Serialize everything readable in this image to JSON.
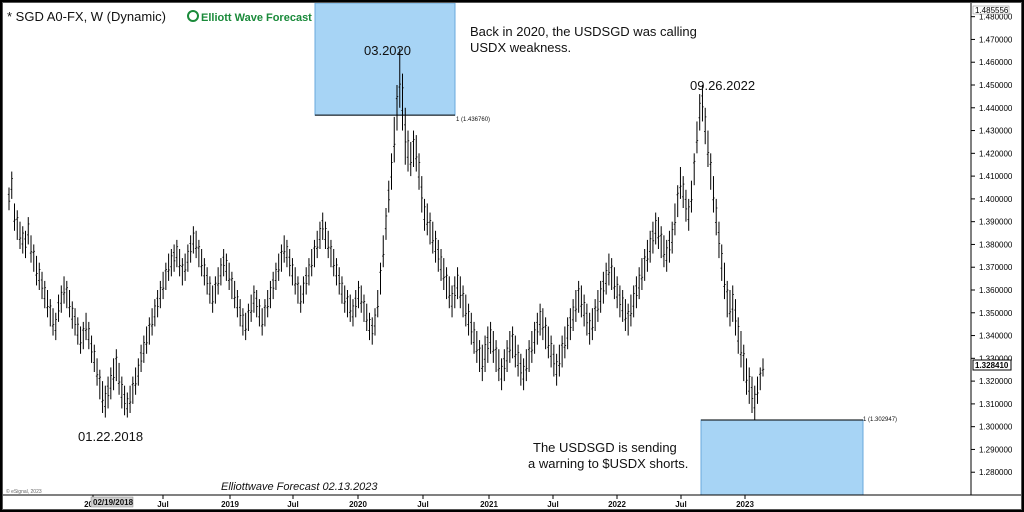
{
  "header": {
    "title": "* SGD A0-FX, W (Dynamic)",
    "brand": "Elliott Wave Forecast"
  },
  "annotations": {
    "peak_2020": "03.2020",
    "peak_2022": "09.26.2022",
    "low_2018": "01.22.2018",
    "note_top_line1": "Back in 2020, the USDSGD was calling",
    "note_top_line2": "USDX weakness.",
    "note_bottom_line1": "The USDSGD is sending",
    "note_bottom_line2": "a warning to $USDX shorts.",
    "box_top_label": "1 (1.436760)",
    "box_bottom_label": "1 (1.302947)",
    "footer": "Elliottwave Forecast  02.13.2023",
    "copyright": "© eSignal, 2023",
    "current_price": "1.328410",
    "top_price": "1.485556",
    "cursor_date": "02/19/2018"
  },
  "colors": {
    "bars": "#000000",
    "box_fill": "#a7d4f5",
    "box_stroke": "#6aa9dc",
    "brand_green": "#1a8a3a",
    "price_box": "#ffffff"
  },
  "chart_data": {
    "type": "ohlc",
    "timeframe": "weekly",
    "ylim": [
      1.27,
      1.486
    ],
    "y_ticks": [
      "1.280000",
      "1.290000",
      "1.300000",
      "1.310000",
      "1.320000",
      "1.330000",
      "1.340000",
      "1.350000",
      "1.360000",
      "1.370000",
      "1.380000",
      "1.390000",
      "1.400000",
      "1.410000",
      "1.420000",
      "1.430000",
      "1.440000",
      "1.450000",
      "1.460000",
      "1.470000",
      "1.480000"
    ],
    "x_ticks": [
      "2018",
      "Jul",
      "2019",
      "Jul",
      "2020",
      "Jul",
      "2021",
      "Jul",
      "2022",
      "Jul",
      "2023"
    ],
    "boxes": [
      {
        "name": "target-2020",
        "y_top": 1.486,
        "y_bottom": 1.43676,
        "level": 1.43676
      },
      {
        "name": "target-2022",
        "y_top": 1.302947,
        "y_bottom": 1.27,
        "level": 1.302947
      }
    ],
    "series": [
      {
        "values_high": [
          1.405,
          1.412,
          1.398,
          1.395,
          1.39,
          1.388,
          1.386,
          1.392,
          1.384,
          1.38,
          1.375,
          1.372,
          1.368,
          1.364,
          1.36,
          1.356,
          1.352,
          1.35,
          1.358,
          1.362,
          1.366,
          1.364,
          1.36,
          1.355,
          1.352,
          1.348,
          1.344,
          1.346,
          1.35,
          1.346,
          1.34,
          1.336,
          1.33,
          1.325,
          1.32,
          1.318,
          1.322,
          1.326,
          1.33,
          1.334,
          1.328,
          1.322,
          1.318,
          1.315,
          1.318,
          1.322,
          1.326,
          1.33,
          1.336,
          1.34,
          1.344,
          1.348,
          1.352,
          1.356,
          1.36,
          1.364,
          1.368,
          1.372,
          1.376,
          1.378,
          1.38,
          1.382,
          1.378,
          1.374,
          1.376,
          1.38,
          1.384,
          1.388,
          1.386,
          1.382,
          1.378,
          1.374,
          1.37,
          1.366,
          1.362,
          1.366,
          1.37,
          1.374,
          1.378,
          1.376,
          1.372,
          1.368,
          1.364,
          1.36,
          1.356,
          1.352,
          1.35,
          1.354,
          1.358,
          1.362,
          1.36,
          1.356,
          1.352,
          1.356,
          1.36,
          1.364,
          1.368,
          1.372,
          1.376,
          1.38,
          1.384,
          1.382,
          1.378,
          1.374,
          1.37,
          1.366,
          1.362,
          1.366,
          1.37,
          1.374,
          1.378,
          1.382,
          1.386,
          1.39,
          1.394,
          1.39,
          1.386,
          1.382,
          1.378,
          1.374,
          1.37,
          1.366,
          1.362,
          1.36,
          1.358,
          1.356,
          1.36,
          1.364,
          1.362,
          1.358,
          1.354,
          1.35,
          1.348,
          1.352,
          1.36,
          1.372,
          1.384,
          1.396,
          1.408,
          1.42,
          1.436,
          1.45,
          1.466,
          1.455,
          1.44,
          1.43,
          1.425,
          1.43,
          1.428,
          1.42,
          1.41,
          1.4,
          1.398,
          1.394,
          1.39,
          1.386,
          1.382,
          1.378,
          1.374,
          1.37,
          1.366,
          1.362,
          1.366,
          1.37,
          1.366,
          1.362,
          1.358,
          1.354,
          1.35,
          1.346,
          1.342,
          1.338,
          1.336,
          1.34,
          1.344,
          1.346,
          1.342,
          1.338,
          1.334,
          1.33,
          1.334,
          1.338,
          1.342,
          1.344,
          1.34,
          1.336,
          1.332,
          1.33,
          1.334,
          1.338,
          1.342,
          1.346,
          1.35,
          1.354,
          1.352,
          1.348,
          1.344,
          1.34,
          1.336,
          1.332,
          1.336,
          1.34,
          1.344,
          1.348,
          1.352,
          1.356,
          1.36,
          1.364,
          1.362,
          1.358,
          1.354,
          1.35,
          1.352,
          1.356,
          1.36,
          1.364,
          1.368,
          1.372,
          1.376,
          1.374,
          1.37,
          1.366,
          1.362,
          1.36,
          1.356,
          1.354,
          1.358,
          1.362,
          1.366,
          1.37,
          1.374,
          1.378,
          1.382,
          1.386,
          1.39,
          1.394,
          1.392,
          1.388,
          1.384,
          1.382,
          1.386,
          1.39,
          1.398,
          1.406,
          1.414,
          1.41,
          1.404,
          1.4,
          1.408,
          1.42,
          1.434,
          1.446,
          1.45,
          1.44,
          1.43,
          1.42,
          1.41,
          1.4,
          1.39,
          1.38,
          1.372,
          1.364,
          1.36,
          1.362,
          1.356,
          1.348,
          1.342,
          1.336,
          1.33,
          1.326,
          1.322,
          1.318,
          1.322,
          1.326,
          1.33
        ],
        "values_low": [
          1.395,
          1.4,
          1.386,
          1.382,
          1.378,
          1.376,
          1.374,
          1.38,
          1.372,
          1.368,
          1.362,
          1.36,
          1.356,
          1.352,
          1.348,
          1.344,
          1.34,
          1.338,
          1.346,
          1.35,
          1.354,
          1.352,
          1.348,
          1.343,
          1.34,
          1.336,
          1.332,
          1.334,
          1.338,
          1.334,
          1.328,
          1.324,
          1.318,
          1.312,
          1.306,
          1.304,
          1.308,
          1.312,
          1.316,
          1.32,
          1.314,
          1.308,
          1.305,
          1.304,
          1.306,
          1.31,
          1.314,
          1.318,
          1.324,
          1.328,
          1.332,
          1.336,
          1.34,
          1.344,
          1.348,
          1.352,
          1.356,
          1.36,
          1.364,
          1.366,
          1.368,
          1.37,
          1.366,
          1.362,
          1.364,
          1.368,
          1.372,
          1.376,
          1.374,
          1.37,
          1.366,
          1.362,
          1.358,
          1.354,
          1.35,
          1.354,
          1.358,
          1.362,
          1.366,
          1.364,
          1.36,
          1.356,
          1.352,
          1.348,
          1.344,
          1.34,
          1.338,
          1.342,
          1.346,
          1.35,
          1.348,
          1.344,
          1.34,
          1.344,
          1.348,
          1.352,
          1.356,
          1.36,
          1.364,
          1.368,
          1.372,
          1.37,
          1.366,
          1.362,
          1.358,
          1.354,
          1.35,
          1.354,
          1.358,
          1.362,
          1.366,
          1.37,
          1.374,
          1.378,
          1.382,
          1.378,
          1.374,
          1.37,
          1.366,
          1.362,
          1.358,
          1.354,
          1.35,
          1.348,
          1.346,
          1.344,
          1.348,
          1.352,
          1.35,
          1.346,
          1.342,
          1.338,
          1.336,
          1.34,
          1.348,
          1.358,
          1.37,
          1.382,
          1.394,
          1.404,
          1.416,
          1.43,
          1.44,
          1.43,
          1.415,
          1.412,
          1.41,
          1.414,
          1.412,
          1.404,
          1.394,
          1.386,
          1.384,
          1.38,
          1.376,
          1.372,
          1.368,
          1.364,
          1.36,
          1.356,
          1.352,
          1.348,
          1.352,
          1.356,
          1.352,
          1.348,
          1.344,
          1.34,
          1.336,
          1.332,
          1.328,
          1.324,
          1.32,
          1.324,
          1.328,
          1.332,
          1.328,
          1.324,
          1.32,
          1.316,
          1.32,
          1.324,
          1.328,
          1.33,
          1.326,
          1.322,
          1.318,
          1.316,
          1.32,
          1.324,
          1.328,
          1.332,
          1.336,
          1.34,
          1.338,
          1.334,
          1.33,
          1.326,
          1.322,
          1.318,
          1.322,
          1.326,
          1.33,
          1.334,
          1.338,
          1.342,
          1.346,
          1.35,
          1.348,
          1.344,
          1.34,
          1.336,
          1.338,
          1.342,
          1.346,
          1.35,
          1.354,
          1.358,
          1.362,
          1.36,
          1.356,
          1.352,
          1.348,
          1.346,
          1.342,
          1.34,
          1.344,
          1.348,
          1.352,
          1.356,
          1.36,
          1.364,
          1.368,
          1.372,
          1.376,
          1.38,
          1.378,
          1.374,
          1.37,
          1.368,
          1.372,
          1.376,
          1.384,
          1.392,
          1.4,
          1.396,
          1.39,
          1.386,
          1.394,
          1.406,
          1.42,
          1.43,
          1.434,
          1.424,
          1.414,
          1.404,
          1.394,
          1.384,
          1.374,
          1.364,
          1.356,
          1.348,
          1.344,
          1.346,
          1.34,
          1.332,
          1.326,
          1.32,
          1.314,
          1.31,
          1.306,
          1.303,
          1.31,
          1.316,
          1.322
        ]
      }
    ]
  }
}
